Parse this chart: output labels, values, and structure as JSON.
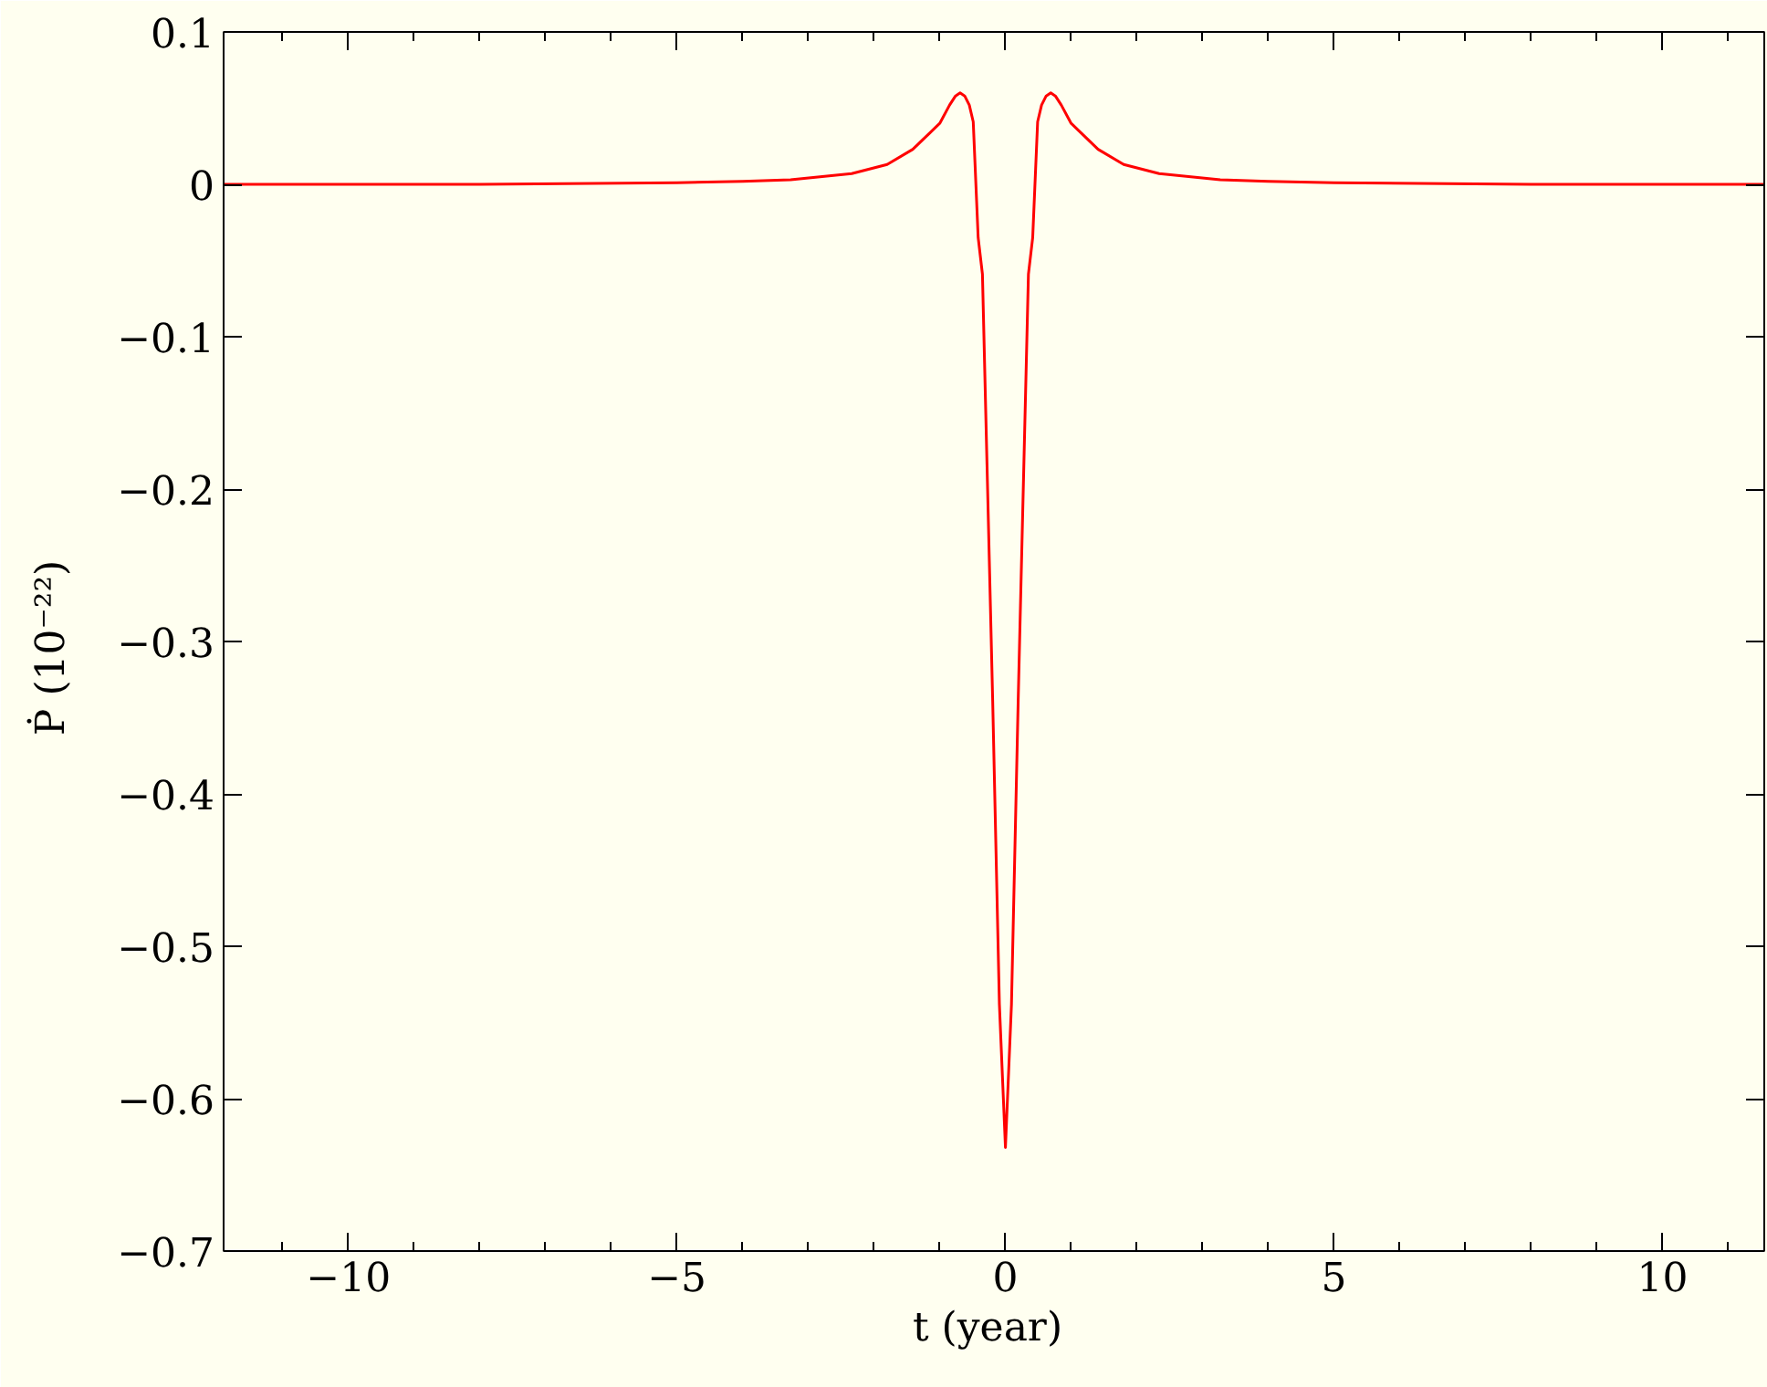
{
  "chart_data": {
    "type": "line",
    "xlabel": "t  (year)",
    "ylabel": "Ṗ  (10⁻²²)",
    "xlim": [
      -11.9,
      11.55
    ],
    "ylim": [
      -0.7,
      0.1
    ],
    "xticks": [
      {
        "value": -10,
        "label": "−10"
      },
      {
        "value": -5,
        "label": "−5"
      },
      0,
      5,
      10
    ],
    "yticks": [
      {
        "value": -0.7,
        "label": "−0.7"
      },
      {
        "value": -0.6,
        "label": "−0.6"
      },
      {
        "value": -0.5,
        "label": "−0.5"
      },
      {
        "value": -0.4,
        "label": "−0.4"
      },
      {
        "value": -0.3,
        "label": "−0.3"
      },
      {
        "value": -0.2,
        "label": "−0.2"
      },
      {
        "value": -0.1,
        "label": "−0.1"
      },
      0,
      0.1
    ],
    "grid": false,
    "marker": "none",
    "line_style": "solid",
    "series": [
      {
        "color": "#ff0000",
        "x": [
          -11.9,
          -8,
          -5,
          -4,
          -3.27,
          -2.34,
          -1.8,
          -1.41,
          -1.0,
          -0.85,
          -0.76,
          -0.69,
          -0.62,
          -0.55,
          -0.49,
          -0.415,
          -0.35,
          -0.194,
          -0.092,
          0,
          0.092,
          0.194,
          0.35,
          0.415,
          0.49,
          0.55,
          0.62,
          0.69,
          0.76,
          0.85,
          1.0,
          1.41,
          1.8,
          2.34,
          3.27,
          4,
          5,
          8,
          11.55
        ],
        "values": [
          0,
          0,
          0.001,
          0.002,
          0.003,
          0.007,
          0.013,
          0.023,
          0.04,
          0.052,
          0.058,
          0.06,
          0.058,
          0.052,
          0.041,
          -0.035,
          -0.059,
          -0.339,
          -0.538,
          -0.632,
          -0.538,
          -0.339,
          -0.059,
          -0.035,
          0.041,
          0.052,
          0.058,
          0.06,
          0.058,
          0.052,
          0.04,
          0.023,
          0.013,
          0.007,
          0.003,
          0.002,
          0.001,
          0,
          0
        ]
      }
    ]
  }
}
